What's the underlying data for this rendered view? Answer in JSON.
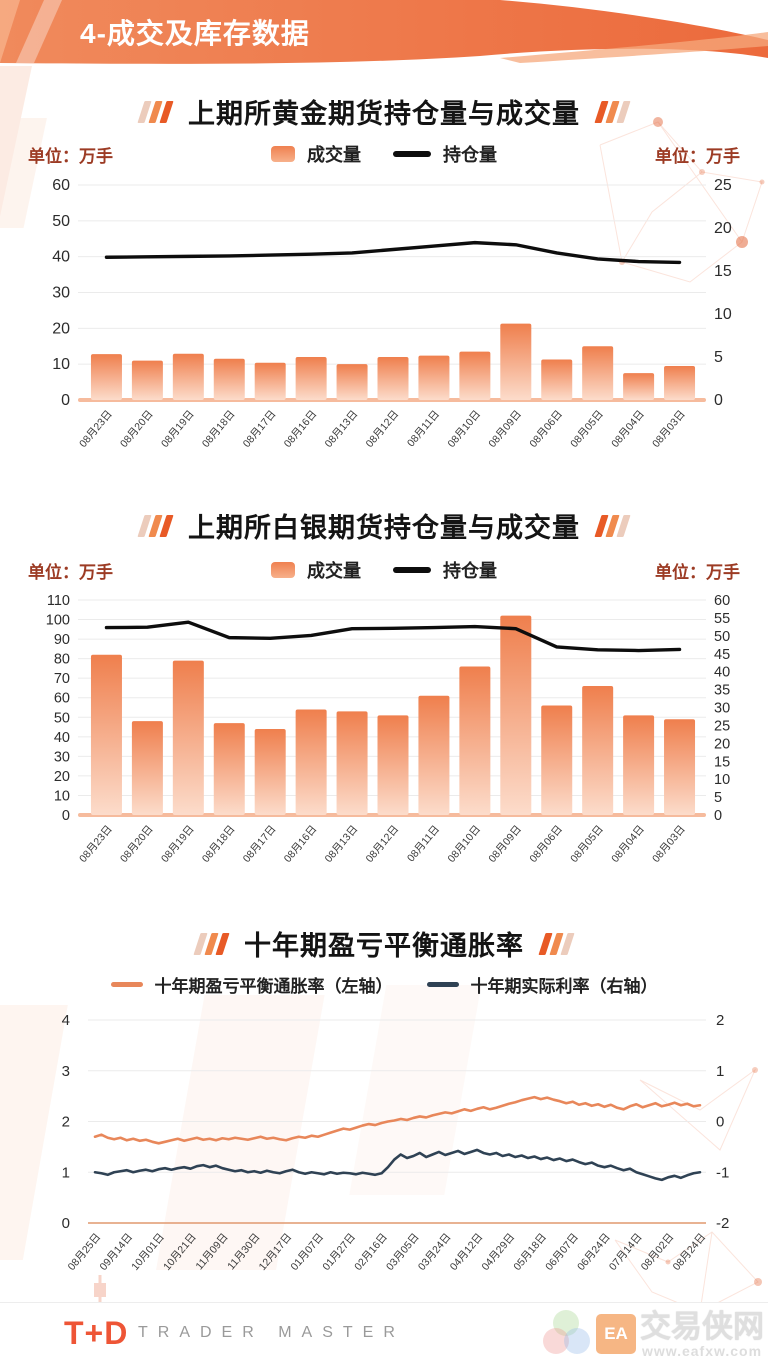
{
  "page": {
    "header": {
      "title": "4-成交及库存数据"
    },
    "footer": {
      "logo_text": "T+D",
      "brand_text": "TRADER MASTER",
      "watermark_icon_text": "EA",
      "watermark_site_name": "交易侠网",
      "watermark_site_url": "www.eafxw.com"
    },
    "colors": {
      "banner_orange": "#ee7346",
      "bar_gradient_top": "#ef7f4d",
      "bar_gradient_bottom": "#fcdccb",
      "open_interest_line": "#0d0d0d",
      "inflation_line": "#e8875a",
      "real_rate_line": "#2f4254",
      "unit_text": "#9c3b24",
      "grid": "#ebebeb",
      "baseline": "#f6bb9d"
    }
  },
  "chart_data": [
    {
      "type": "bar",
      "title": "上期所黄金期货持仓量与成交量",
      "unit_left": "单位：万手",
      "unit_right": "单位：万手",
      "legend": [
        {
          "label": "成交量"
        },
        {
          "label": "持仓量"
        }
      ],
      "categories": [
        "08月23日",
        "08月20日",
        "08月19日",
        "08月18日",
        "08月17日",
        "08月16日",
        "08月13日",
        "08月12日",
        "08月11日",
        "08月10日",
        "08月09日",
        "08月06日",
        "08月05日",
        "08月04日",
        "08月03日"
      ],
      "bar_series": {
        "name": "成交量",
        "axis": "left",
        "values": [
          12.8,
          11.0,
          12.9,
          11.5,
          10.4,
          12.0,
          10.0,
          12.0,
          12.4,
          13.5,
          21.3,
          11.3,
          15.0,
          7.5,
          9.5
        ]
      },
      "line_series": {
        "name": "持仓量",
        "axis": "right",
        "values": [
          16.6,
          16.65,
          16.7,
          16.75,
          16.85,
          16.95,
          17.1,
          17.5,
          17.9,
          18.3,
          18.05,
          17.1,
          16.4,
          16.1,
          16.0
        ]
      },
      "left_axis": {
        "min": 0,
        "max": 60,
        "step": 10
      },
      "right_axis": {
        "min": 0,
        "max": 25,
        "step": 5
      },
      "grid": true,
      "legend_position": "top"
    },
    {
      "type": "bar",
      "title": "上期所白银期货持仓量与成交量",
      "unit_left": "单位：万手",
      "unit_right": "单位：万手",
      "legend": [
        {
          "label": "成交量"
        },
        {
          "label": "持仓量"
        }
      ],
      "categories": [
        "08月23日",
        "08月20日",
        "08月19日",
        "08月18日",
        "08月17日",
        "08月16日",
        "08月13日",
        "08月12日",
        "08月11日",
        "08月10日",
        "08月09日",
        "08月06日",
        "08月05日",
        "08月04日",
        "08月03日"
      ],
      "bar_series": {
        "name": "成交量",
        "axis": "left",
        "values": [
          82,
          48,
          79,
          47,
          44,
          54,
          53,
          51,
          61,
          76,
          102,
          56,
          66,
          51,
          49
        ]
      },
      "line_series": {
        "name": "持仓量",
        "axis": "right",
        "values": [
          52.3,
          52.4,
          53.8,
          49.5,
          49.3,
          50.1,
          52.0,
          52.1,
          52.3,
          52.6,
          52.0,
          46.9,
          46.1,
          45.9,
          46.2
        ]
      },
      "left_axis": {
        "min": 0,
        "max": 110,
        "step": 10
      },
      "right_axis": {
        "min": 0,
        "max": 60,
        "step": 5
      },
      "grid": true,
      "legend_position": "top"
    },
    {
      "type": "line",
      "title": "十年期盈亏平衡通胀率",
      "legend": [
        {
          "label": "十年期盈亏平衡通胀率（左轴）"
        },
        {
          "label": "十年期实际利率（右轴）"
        }
      ],
      "categories": [
        "08月25日",
        "09月14日",
        "10月01日",
        "10月21日",
        "11月09日",
        "11月30日",
        "12月17日",
        "01月07日",
        "01月27日",
        "02月16日",
        "03月05日",
        "03月24日",
        "04月12日",
        "04月29日",
        "05月18日",
        "06月07日",
        "06月24日",
        "07月14日",
        "08月02日",
        "08月24日"
      ],
      "series": [
        {
          "name": "十年期盈亏平衡通胀率",
          "axis": "left",
          "color": "#e8875a",
          "values": [
            1.7,
            1.74,
            1.68,
            1.65,
            1.68,
            1.63,
            1.66,
            1.62,
            1.64,
            1.6,
            1.57,
            1.6,
            1.63,
            1.66,
            1.62,
            1.65,
            1.68,
            1.64,
            1.66,
            1.63,
            1.67,
            1.65,
            1.68,
            1.66,
            1.64,
            1.67,
            1.7,
            1.66,
            1.68,
            1.65,
            1.63,
            1.67,
            1.7,
            1.68,
            1.72,
            1.7,
            1.74,
            1.78,
            1.82,
            1.86,
            1.84,
            1.88,
            1.92,
            1.95,
            1.93,
            1.97,
            2.0,
            2.02,
            2.05,
            2.03,
            2.07,
            2.1,
            2.08,
            2.12,
            2.15,
            2.18,
            2.16,
            2.2,
            2.24,
            2.21,
            2.25,
            2.28,
            2.24,
            2.27,
            2.31,
            2.35,
            2.38,
            2.42,
            2.45,
            2.48,
            2.44,
            2.47,
            2.43,
            2.4,
            2.36,
            2.39,
            2.33,
            2.36,
            2.31,
            2.34,
            2.29,
            2.33,
            2.27,
            2.24,
            2.3,
            2.34,
            2.28,
            2.32,
            2.36,
            2.3,
            2.33,
            2.37,
            2.32,
            2.35,
            2.3,
            2.32
          ]
        },
        {
          "name": "十年期实际利率",
          "axis": "right",
          "color": "#2f4254",
          "values": [
            -1.0,
            -1.02,
            -1.05,
            -1.0,
            -0.98,
            -0.96,
            -1.0,
            -0.97,
            -0.95,
            -0.98,
            -0.94,
            -0.92,
            -0.95,
            -0.92,
            -0.9,
            -0.93,
            -0.88,
            -0.86,
            -0.9,
            -0.87,
            -0.92,
            -0.95,
            -0.98,
            -0.96,
            -1.0,
            -0.98,
            -1.01,
            -0.97,
            -1.0,
            -1.02,
            -0.98,
            -0.95,
            -1.0,
            -1.03,
            -1.0,
            -1.02,
            -1.04,
            -1.0,
            -1.03,
            -1.01,
            -1.02,
            -1.04,
            -1.01,
            -1.03,
            -1.05,
            -1.02,
            -0.9,
            -0.75,
            -0.65,
            -0.72,
            -0.68,
            -0.62,
            -0.7,
            -0.65,
            -0.6,
            -0.66,
            -0.62,
            -0.58,
            -0.64,
            -0.6,
            -0.56,
            -0.62,
            -0.65,
            -0.62,
            -0.68,
            -0.65,
            -0.7,
            -0.67,
            -0.72,
            -0.69,
            -0.74,
            -0.71,
            -0.76,
            -0.73,
            -0.78,
            -0.75,
            -0.8,
            -0.84,
            -0.81,
            -0.87,
            -0.9,
            -0.87,
            -0.92,
            -0.96,
            -0.93,
            -1.0,
            -1.04,
            -1.08,
            -1.12,
            -1.15,
            -1.1,
            -1.07,
            -1.11,
            -1.06,
            -1.02,
            -1.0
          ]
        }
      ],
      "left_axis": {
        "min": 0,
        "max": 4,
        "step": 1
      },
      "right_axis": {
        "min": -2,
        "max": 2,
        "step": 1
      },
      "grid": true,
      "legend_position": "top"
    }
  ]
}
